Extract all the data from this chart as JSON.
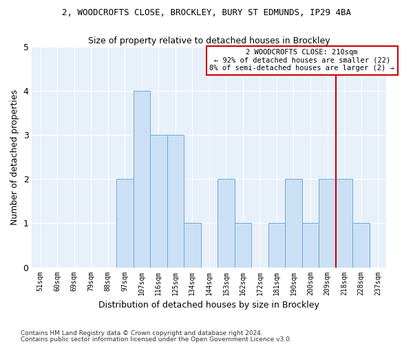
{
  "title_line1": "2, WOODCROFTS CLOSE, BROCKLEY, BURY ST EDMUNDS, IP29 4BA",
  "title_line2": "Size of property relative to detached houses in Brockley",
  "xlabel": "Distribution of detached houses by size in Brockley",
  "ylabel": "Number of detached properties",
  "categories": [
    "51sqm",
    "60sqm",
    "69sqm",
    "79sqm",
    "88sqm",
    "97sqm",
    "107sqm",
    "116sqm",
    "125sqm",
    "134sqm",
    "144sqm",
    "153sqm",
    "162sqm",
    "172sqm",
    "181sqm",
    "190sqm",
    "200sqm",
    "209sqm",
    "218sqm",
    "228sqm",
    "237sqm"
  ],
  "values": [
    0,
    0,
    0,
    0,
    0,
    2,
    4,
    3,
    3,
    1,
    0,
    2,
    1,
    0,
    1,
    2,
    1,
    2,
    2,
    1,
    0
  ],
  "bar_color": "#cce0f5",
  "bar_edge_color": "#6aaad4",
  "vline_x_index": 17.5,
  "vline_color": "#cc0000",
  "annotation_text": "2 WOODCROFTS CLOSE: 210sqm\n← 92% of detached houses are smaller (22)\n8% of semi-detached houses are larger (2) →",
  "annotation_box_edgecolor": "#cc0000",
  "ylim": [
    0,
    5
  ],
  "yticks": [
    0,
    1,
    2,
    3,
    4,
    5
  ],
  "background_color": "#e8f0fa",
  "footnote_line1": "Contains HM Land Registry data © Crown copyright and database right 2024.",
  "footnote_line2": "Contains public sector information licensed under the Open Government Licence v3.0."
}
